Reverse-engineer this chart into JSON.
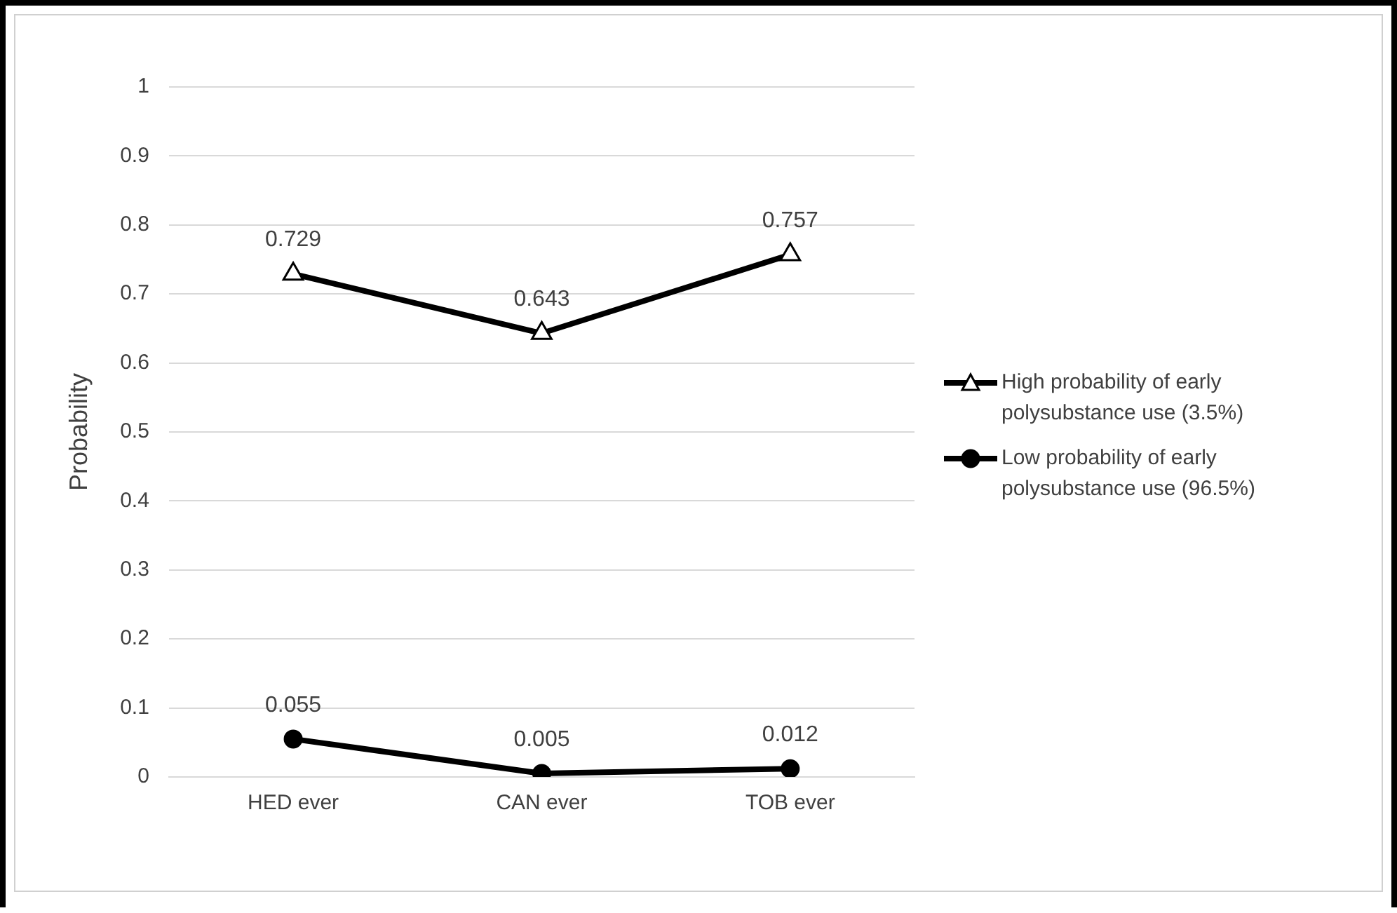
{
  "chart_data": {
    "type": "line",
    "ylabel": "Probability",
    "categories": [
      "HED ever",
      "CAN ever",
      "TOB ever"
    ],
    "series": [
      {
        "name": "High probability of early polysubstance use (3.5%)",
        "color": "#000000",
        "marker": "triangle",
        "values": [
          0.729,
          0.643,
          0.757
        ]
      },
      {
        "name": "Low probability of early polysubstance use (96.5%)",
        "color": "#000000",
        "marker": "circle",
        "values": [
          0.055,
          0.005,
          0.012
        ]
      }
    ],
    "ylim": [
      0,
      1
    ],
    "yticks": [
      0,
      0.1,
      0.2,
      0.3,
      0.4,
      0.5,
      0.6,
      0.7,
      0.8,
      0.9,
      1
    ],
    "grid": "y",
    "legend": "right",
    "data_labels": true
  }
}
